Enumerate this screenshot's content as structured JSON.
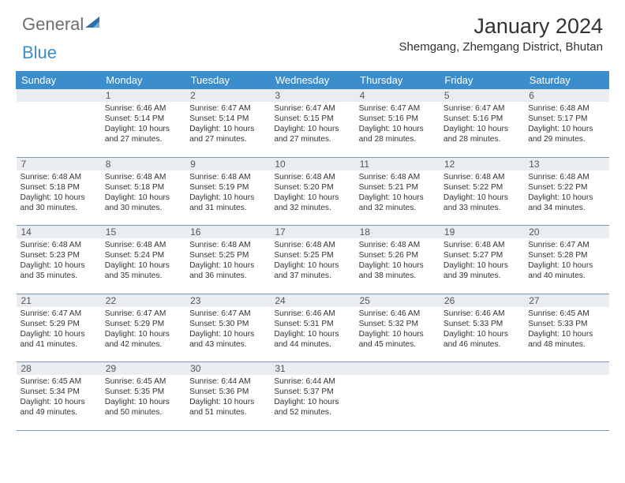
{
  "brand": {
    "part1": "General",
    "part2": "Blue"
  },
  "title": "January 2024",
  "location": "Shemgang, Zhemgang District, Bhutan",
  "colors": {
    "header_bg": "#3c8dcc",
    "daynum_bg": "#e9edf1",
    "border": "#7a99b8",
    "text": "#333333",
    "brand_gray": "#6e6e6e",
    "brand_blue": "#3c8dcc"
  },
  "weekdays": [
    "Sunday",
    "Monday",
    "Tuesday",
    "Wednesday",
    "Thursday",
    "Friday",
    "Saturday"
  ],
  "weeks": [
    {
      "nums": [
        "",
        "1",
        "2",
        "3",
        "4",
        "5",
        "6"
      ],
      "details": [
        "",
        "Sunrise: 6:46 AM\nSunset: 5:14 PM\nDaylight: 10 hours and 27 minutes.",
        "Sunrise: 6:47 AM\nSunset: 5:14 PM\nDaylight: 10 hours and 27 minutes.",
        "Sunrise: 6:47 AM\nSunset: 5:15 PM\nDaylight: 10 hours and 27 minutes.",
        "Sunrise: 6:47 AM\nSunset: 5:16 PM\nDaylight: 10 hours and 28 minutes.",
        "Sunrise: 6:47 AM\nSunset: 5:16 PM\nDaylight: 10 hours and 28 minutes.",
        "Sunrise: 6:48 AM\nSunset: 5:17 PM\nDaylight: 10 hours and 29 minutes."
      ]
    },
    {
      "nums": [
        "7",
        "8",
        "9",
        "10",
        "11",
        "12",
        "13"
      ],
      "details": [
        "Sunrise: 6:48 AM\nSunset: 5:18 PM\nDaylight: 10 hours and 30 minutes.",
        "Sunrise: 6:48 AM\nSunset: 5:18 PM\nDaylight: 10 hours and 30 minutes.",
        "Sunrise: 6:48 AM\nSunset: 5:19 PM\nDaylight: 10 hours and 31 minutes.",
        "Sunrise: 6:48 AM\nSunset: 5:20 PM\nDaylight: 10 hours and 32 minutes.",
        "Sunrise: 6:48 AM\nSunset: 5:21 PM\nDaylight: 10 hours and 32 minutes.",
        "Sunrise: 6:48 AM\nSunset: 5:22 PM\nDaylight: 10 hours and 33 minutes.",
        "Sunrise: 6:48 AM\nSunset: 5:22 PM\nDaylight: 10 hours and 34 minutes."
      ]
    },
    {
      "nums": [
        "14",
        "15",
        "16",
        "17",
        "18",
        "19",
        "20"
      ],
      "details": [
        "Sunrise: 6:48 AM\nSunset: 5:23 PM\nDaylight: 10 hours and 35 minutes.",
        "Sunrise: 6:48 AM\nSunset: 5:24 PM\nDaylight: 10 hours and 35 minutes.",
        "Sunrise: 6:48 AM\nSunset: 5:25 PM\nDaylight: 10 hours and 36 minutes.",
        "Sunrise: 6:48 AM\nSunset: 5:25 PM\nDaylight: 10 hours and 37 minutes.",
        "Sunrise: 6:48 AM\nSunset: 5:26 PM\nDaylight: 10 hours and 38 minutes.",
        "Sunrise: 6:48 AM\nSunset: 5:27 PM\nDaylight: 10 hours and 39 minutes.",
        "Sunrise: 6:47 AM\nSunset: 5:28 PM\nDaylight: 10 hours and 40 minutes."
      ]
    },
    {
      "nums": [
        "21",
        "22",
        "23",
        "24",
        "25",
        "26",
        "27"
      ],
      "details": [
        "Sunrise: 6:47 AM\nSunset: 5:29 PM\nDaylight: 10 hours and 41 minutes.",
        "Sunrise: 6:47 AM\nSunset: 5:29 PM\nDaylight: 10 hours and 42 minutes.",
        "Sunrise: 6:47 AM\nSunset: 5:30 PM\nDaylight: 10 hours and 43 minutes.",
        "Sunrise: 6:46 AM\nSunset: 5:31 PM\nDaylight: 10 hours and 44 minutes.",
        "Sunrise: 6:46 AM\nSunset: 5:32 PM\nDaylight: 10 hours and 45 minutes.",
        "Sunrise: 6:46 AM\nSunset: 5:33 PM\nDaylight: 10 hours and 46 minutes.",
        "Sunrise: 6:45 AM\nSunset: 5:33 PM\nDaylight: 10 hours and 48 minutes."
      ]
    },
    {
      "nums": [
        "28",
        "29",
        "30",
        "31",
        "",
        "",
        ""
      ],
      "details": [
        "Sunrise: 6:45 AM\nSunset: 5:34 PM\nDaylight: 10 hours and 49 minutes.",
        "Sunrise: 6:45 AM\nSunset: 5:35 PM\nDaylight: 10 hours and 50 minutes.",
        "Sunrise: 6:44 AM\nSunset: 5:36 PM\nDaylight: 10 hours and 51 minutes.",
        "Sunrise: 6:44 AM\nSunset: 5:37 PM\nDaylight: 10 hours and 52 minutes.",
        "",
        "",
        ""
      ]
    }
  ]
}
